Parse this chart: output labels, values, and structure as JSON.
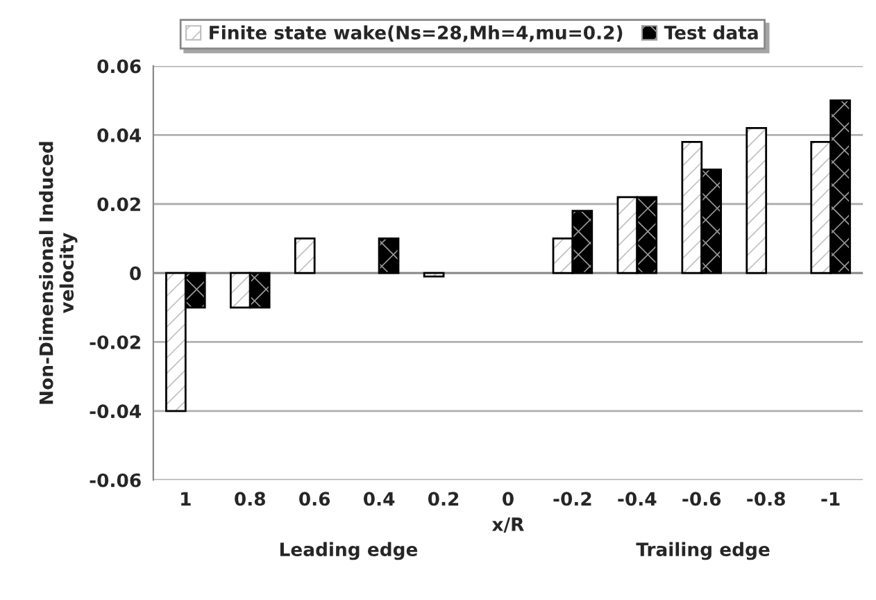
{
  "chart_data": {
    "type": "bar",
    "categories": [
      "1",
      "0.8",
      "0.6",
      "0.4",
      "0.2",
      "0",
      "-0.2",
      "-0.4",
      "-0.6",
      "-0.8",
      "-1"
    ],
    "series": [
      {
        "name": "Finite state wake(Ns=28,Mh=4,mu=0.2)",
        "color": "#ffffff",
        "values": [
          -0.04,
          -0.01,
          0.01,
          null,
          -0.001,
          null,
          0.01,
          0.022,
          0.038,
          0.042,
          0.038
        ]
      },
      {
        "name": "Test data",
        "color": "#000000",
        "values": [
          -0.01,
          -0.01,
          null,
          0.01,
          null,
          null,
          0.018,
          0.022,
          0.03,
          null,
          0.05
        ]
      }
    ],
    "xlabel": "x/R",
    "ylabel": "Non-Dimensional Induced\nvelocity",
    "ylim": [
      -0.06,
      0.06
    ],
    "yticks": [
      -0.06,
      -0.04,
      -0.02,
      0,
      0.02,
      0.04,
      0.06
    ],
    "grid": "y",
    "legend": "top",
    "annotations": [
      "Leading edge",
      "Trailing edge"
    ]
  }
}
